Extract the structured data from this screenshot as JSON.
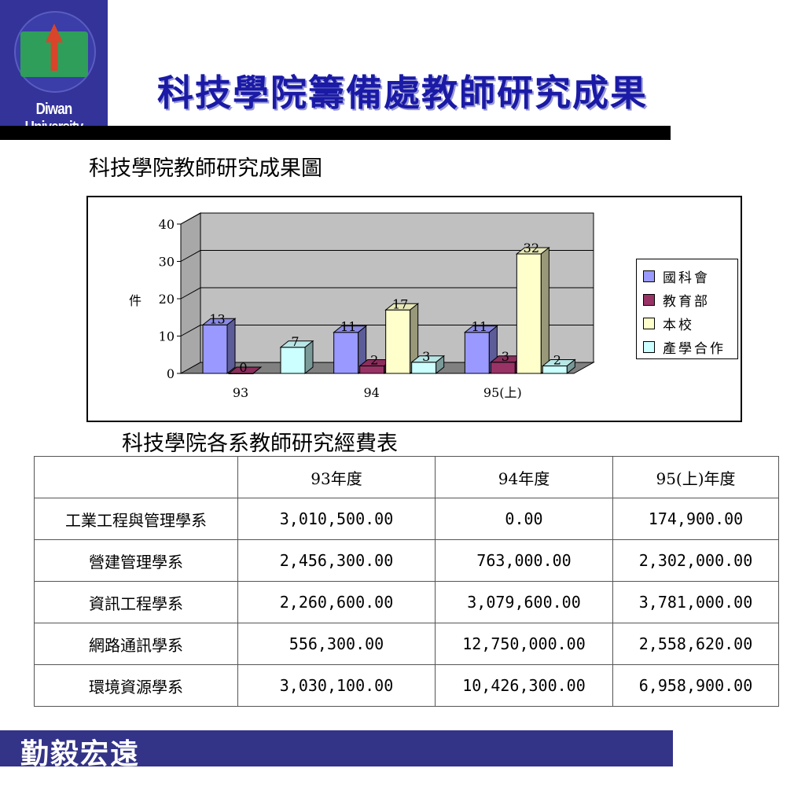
{
  "logo": {
    "text": "Diwan University",
    "icon": "university-emblem-icon"
  },
  "title": "科技學院籌備處教師研究成果",
  "chart_caption": "科技學院教師研究成果圖",
  "chart_data": {
    "type": "bar",
    "categories": [
      "93",
      "94",
      "95(上)"
    ],
    "series": [
      {
        "name": "國科會",
        "values": [
          13,
          11,
          11
        ],
        "color": "#9999ff"
      },
      {
        "name": "教育部",
        "values": [
          0,
          2,
          3
        ],
        "color": "#993366"
      },
      {
        "name": "本校",
        "values": [
          null,
          17,
          32
        ],
        "color": "#ffffcc"
      },
      {
        "name": "產學合作",
        "values": [
          7,
          3,
          2
        ],
        "color": "#ccffff"
      }
    ],
    "ylabel": "件",
    "ylim": [
      0,
      40
    ],
    "yticks": [
      "0",
      "10",
      "20",
      "30",
      "40"
    ],
    "grid": true,
    "legend": "right",
    "style": "3d-column"
  },
  "table_caption": "科技學院各系教師研究經費表",
  "table": {
    "headers": [
      "",
      "93年度",
      "94年度",
      "95(上)年度"
    ],
    "rows": [
      [
        "工業工程與管理學系",
        "3,010,500.00",
        "0.00",
        "174,900.00"
      ],
      [
        "營建管理學系",
        "2,456,300.00",
        "763,000.00",
        "2,302,000.00"
      ],
      [
        "資訊工程學系",
        "2,260,600.00",
        "3,079,600.00",
        "3,781,000.00"
      ],
      [
        "網路通訊學系",
        "556,300.00",
        "12,750,000.00",
        "2,558,620.00"
      ],
      [
        "環境資源學系",
        "3,030,100.00",
        "10,426,300.00",
        "6,958,900.00"
      ]
    ]
  },
  "slogan": "勤毅宏遠"
}
